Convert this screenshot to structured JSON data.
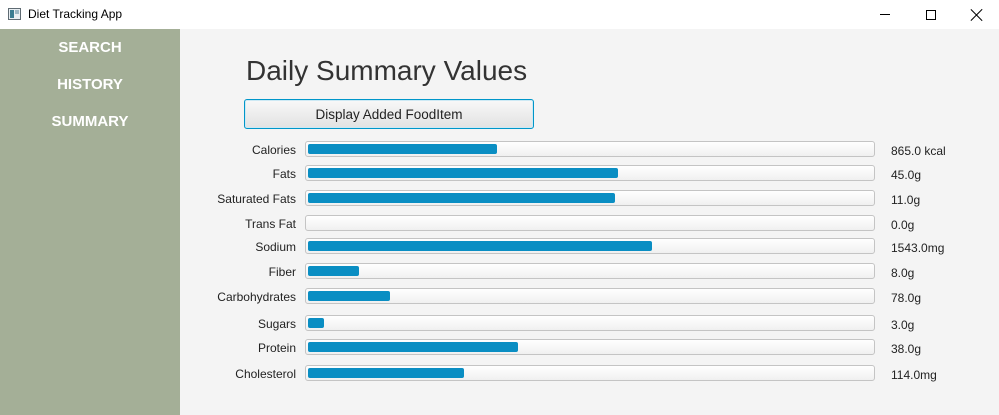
{
  "window": {
    "title": "Diet Tracking App",
    "icon": "app-window-icon",
    "controls": [
      "minimize-icon",
      "maximize-icon",
      "close-icon"
    ]
  },
  "colors": {
    "sidebar_bg": "#a4af97",
    "main_bg": "#f4f4f4",
    "bar_fill": "#0a8ec3",
    "button_border": "#0096c9"
  },
  "sidebar": {
    "items": [
      {
        "label": "SEARCH"
      },
      {
        "label": "HISTORY"
      },
      {
        "label": "SUMMARY"
      }
    ]
  },
  "main": {
    "title": "Daily Summary Values",
    "display_button": "Display Added FoodItem",
    "nutrients": [
      {
        "label": "Calories",
        "value": "865.0 kcal",
        "progress": 0.335
      },
      {
        "label": "Fats",
        "value": "45.0g",
        "progress": 0.55
      },
      {
        "label": "Saturated Fats",
        "value": "11.0g",
        "progress": 0.545
      },
      {
        "label": "Trans Fat",
        "value": "0.0g",
        "progress": 0.0
      },
      {
        "label": "Sodium",
        "value": "1543.0mg",
        "progress": 0.61
      },
      {
        "label": "Fiber",
        "value": "8.0g",
        "progress": 0.09
      },
      {
        "label": "Carbohydrates",
        "value": "78.0g",
        "progress": 0.145
      },
      {
        "label": "Sugars",
        "value": "3.0g",
        "progress": 0.028
      },
      {
        "label": "Protein",
        "value": "38.0g",
        "progress": 0.372
      },
      {
        "label": "Cholesterol",
        "value": "114.0mg",
        "progress": 0.277
      }
    ]
  }
}
